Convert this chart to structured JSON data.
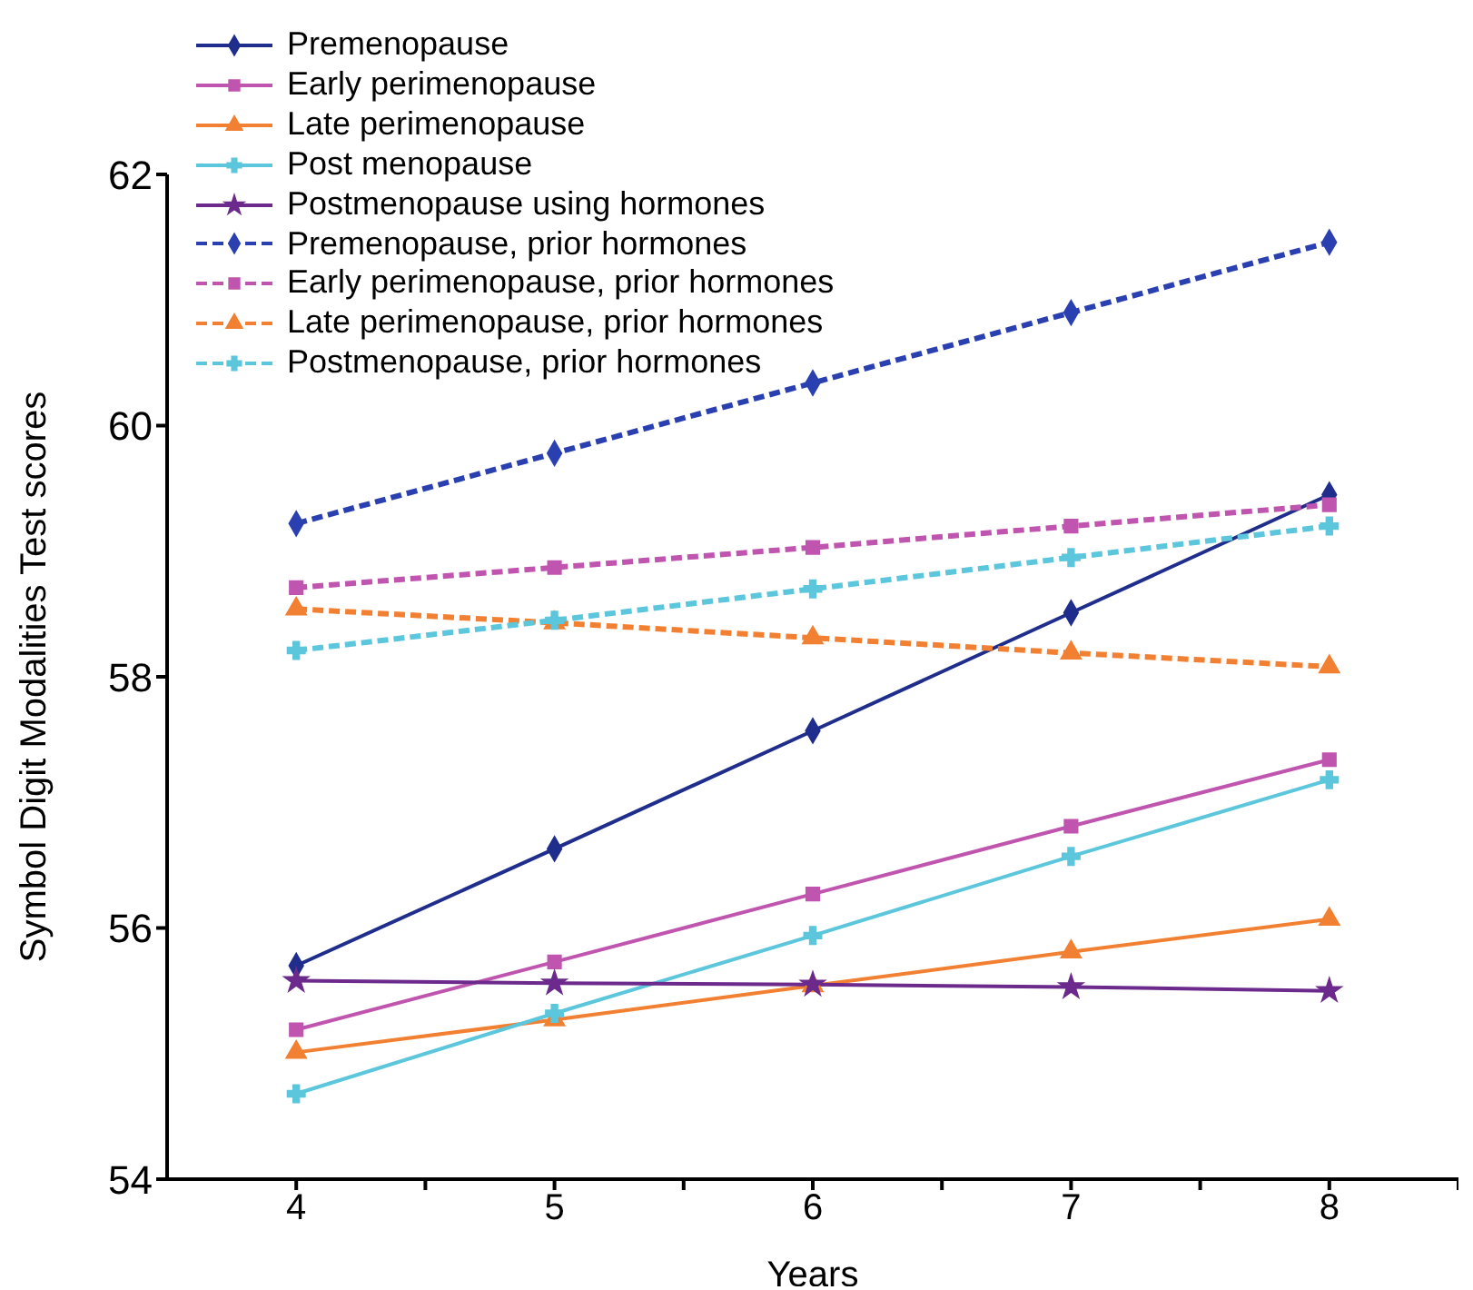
{
  "chart_data": {
    "type": "line",
    "xlabel": "Years",
    "ylabel": "Symbol Digit Modalities Test scores",
    "x": [
      4,
      5,
      6,
      7,
      8
    ],
    "xlim": [
      3.5,
      8.5
    ],
    "xticks": [
      4,
      {
        "value": 4.5,
        "label": null
      },
      5,
      {
        "value": 5.5,
        "label": null
      },
      6,
      {
        "value": 6.5,
        "label": null
      },
      7,
      {
        "value": 7.5,
        "label": null
      },
      8,
      {
        "value": 8.5,
        "label": null
      }
    ],
    "ylim": [
      54,
      62
    ],
    "yticks": [
      54,
      56,
      58,
      60,
      62
    ],
    "grid": false,
    "legend": "top left",
    "series": [
      {
        "name": "Premenopause",
        "color": "#1f2e8c",
        "marker": "diamond",
        "line_style": "solid",
        "values": [
          55.7,
          56.63,
          57.57,
          58.51,
          59.45
        ]
      },
      {
        "name": "Early perimenopause",
        "color": "#c055b0",
        "marker": "square",
        "line_style": "solid",
        "values": [
          55.19,
          55.73,
          56.27,
          56.81,
          57.34
        ]
      },
      {
        "name": "Late perimenopause",
        "color": "#f28032",
        "marker": "triangle",
        "line_style": "solid",
        "values": [
          55.01,
          55.27,
          55.54,
          55.81,
          56.07
        ]
      },
      {
        "name": "Post menopause",
        "color": "#5bc6dc",
        "marker": "cross",
        "line_style": "solid",
        "values": [
          54.68,
          55.32,
          55.94,
          56.57,
          57.18
        ]
      },
      {
        "name": "Postmenopause using hormones",
        "color": "#6b2a8c",
        "marker": "star",
        "line_style": "solid",
        "values": [
          55.58,
          55.56,
          55.55,
          55.53,
          55.5
        ]
      },
      {
        "name": "Premenopause, prior hormones",
        "color": "#2b40b0",
        "marker": "diamond",
        "line_style": "dashed",
        "values": [
          59.22,
          59.78,
          60.34,
          60.9,
          61.46
        ]
      },
      {
        "name": "Early perimenopause, prior hormones",
        "color": "#c055b0",
        "marker": "square",
        "line_style": "dashed",
        "values": [
          58.71,
          58.87,
          59.03,
          59.2,
          59.37
        ]
      },
      {
        "name": "Late perimenopause, prior hormones",
        "color": "#f28032",
        "marker": "triangle",
        "line_style": "dashed",
        "values": [
          58.54,
          58.43,
          58.31,
          58.19,
          58.08
        ]
      },
      {
        "name": "Postmenopause, prior hormones",
        "color": "#5bc6dc",
        "marker": "cross",
        "line_style": "dashed",
        "values": [
          58.21,
          58.45,
          58.7,
          58.95,
          59.2
        ]
      }
    ]
  }
}
